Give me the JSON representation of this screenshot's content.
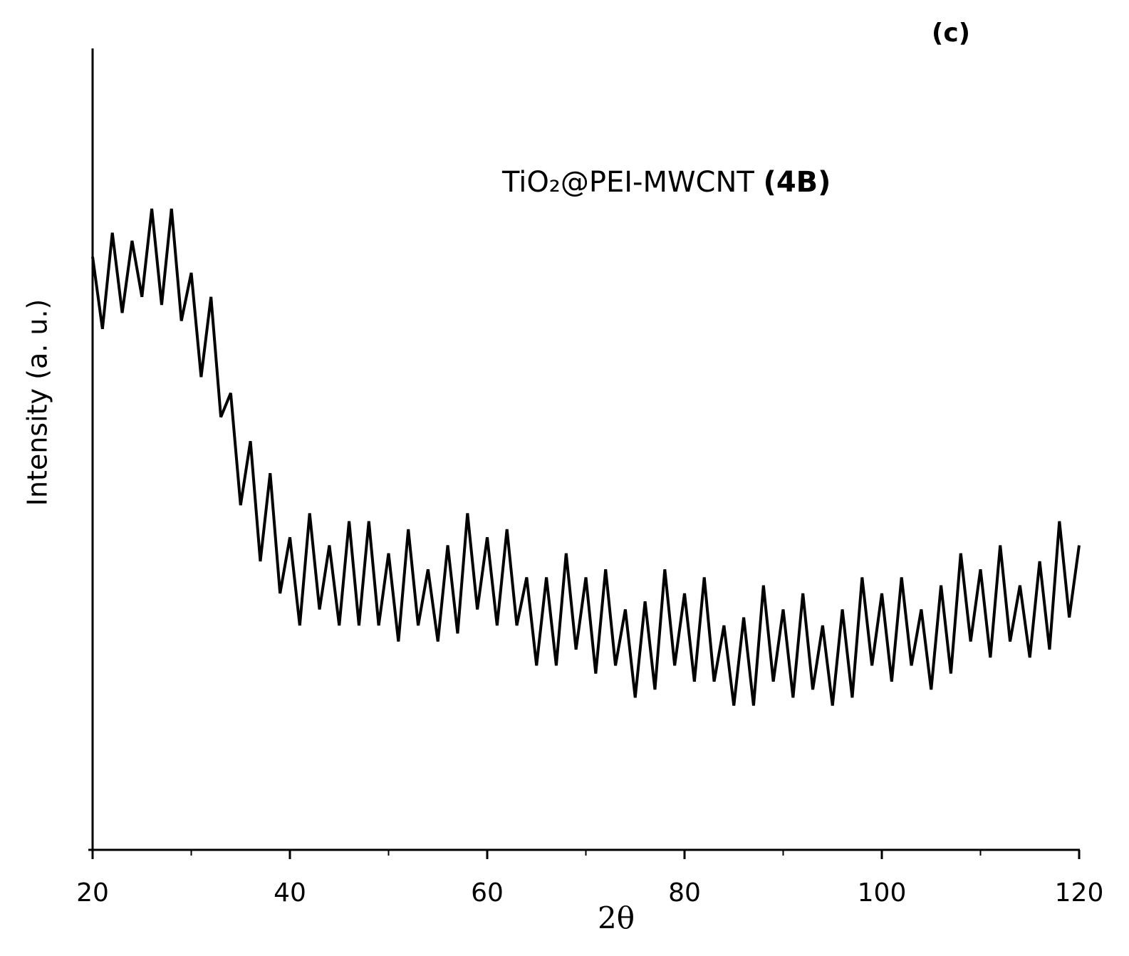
{
  "chart_data": {
    "type": "line",
    "annotations": {
      "panel": "(c)",
      "sample": "TiO₂@PEI-MWCNT",
      "sample_code": "(4B)"
    },
    "xlabel": "2θ",
    "ylabel": "Intensity (a. u.)",
    "xlim": [
      20,
      120
    ],
    "xticks": [
      20,
      40,
      60,
      80,
      100,
      120
    ],
    "xminorticks": [
      30,
      50,
      70,
      90,
      110
    ],
    "ylim": [
      0,
      100
    ],
    "color": "#000000",
    "x": [
      20,
      21,
      22,
      23,
      24,
      25,
      26,
      27,
      28,
      29,
      30,
      31,
      32,
      33,
      34,
      35,
      36,
      37,
      38,
      39,
      40,
      41,
      42,
      43,
      44,
      45,
      46,
      47,
      48,
      49,
      50,
      51,
      52,
      53,
      54,
      55,
      56,
      57,
      58,
      59,
      60,
      61,
      62,
      63,
      64,
      65,
      66,
      67,
      68,
      69,
      70,
      71,
      72,
      73,
      74,
      75,
      76,
      77,
      78,
      79,
      80,
      81,
      82,
      83,
      84,
      85,
      86,
      87,
      88,
      89,
      90,
      91,
      92,
      93,
      94,
      95,
      96,
      97,
      98,
      99,
      100,
      101,
      102,
      103,
      104,
      105,
      106,
      107,
      108,
      109,
      110,
      111,
      112,
      113,
      114,
      115,
      116,
      117,
      118,
      119,
      120
    ],
    "values": [
      74,
      65,
      77,
      67,
      76,
      69,
      80,
      68,
      80,
      66,
      72,
      59,
      69,
      54,
      57,
      43,
      51,
      36,
      47,
      32,
      39,
      28,
      42,
      30,
      38,
      28,
      41,
      28,
      41,
      28,
      37,
      26,
      40,
      28,
      35,
      26,
      38,
      27,
      42,
      30,
      39,
      28,
      40,
      28,
      34,
      23,
      34,
      23,
      37,
      25,
      34,
      22,
      35,
      23,
      30,
      19,
      31,
      20,
      35,
      23,
      32,
      21,
      34,
      21,
      28,
      18,
      29,
      18,
      33,
      21,
      30,
      19,
      32,
      20,
      28,
      18,
      30,
      19,
      34,
      23,
      32,
      21,
      34,
      23,
      30,
      20,
      33,
      22,
      37,
      26,
      35,
      24,
      38,
      26,
      33,
      24,
      36,
      25,
      41,
      29,
      38
    ]
  }
}
